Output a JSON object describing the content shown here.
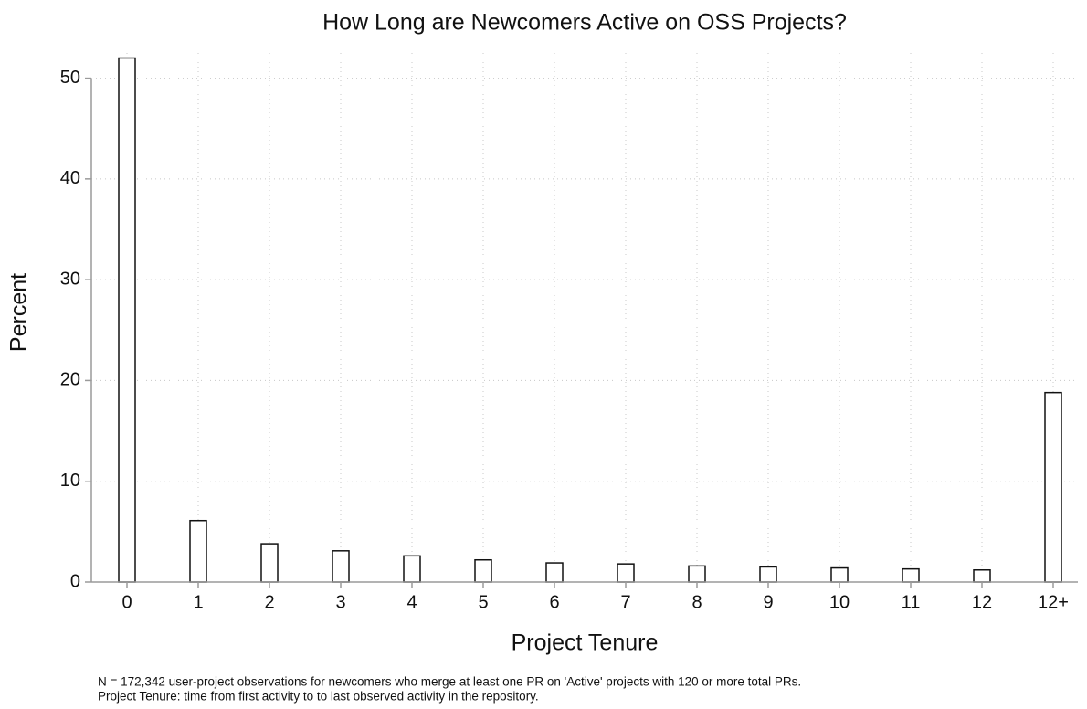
{
  "chart_data": {
    "type": "bar",
    "title": "How Long are Newcomers Active on OSS Projects?",
    "x_label": "Project Tenure",
    "y_label": "Percent",
    "notes": [
      "N = 172,342 user-project observations for newcomers who merge at least one PR on 'Active' projects with 120 or more total PRs.",
      "Project Tenure: time from first activity to to last observed activity in the repository."
    ],
    "categories": [
      "0",
      "1",
      "2",
      "3",
      "4",
      "5",
      "6",
      "7",
      "8",
      "9",
      "10",
      "11",
      "12",
      "12+"
    ],
    "values": [
      52,
      6.1,
      3.8,
      3.1,
      2.6,
      2.2,
      1.9,
      1.8,
      1.6,
      1.5,
      1.4,
      1.3,
      1.2,
      18.8
    ],
    "color": "#ffffff",
    "ylim": [
      0,
      52.5
    ],
    "yticks": [
      0,
      10,
      20,
      30,
      40,
      50
    ],
    "grid": true
  }
}
